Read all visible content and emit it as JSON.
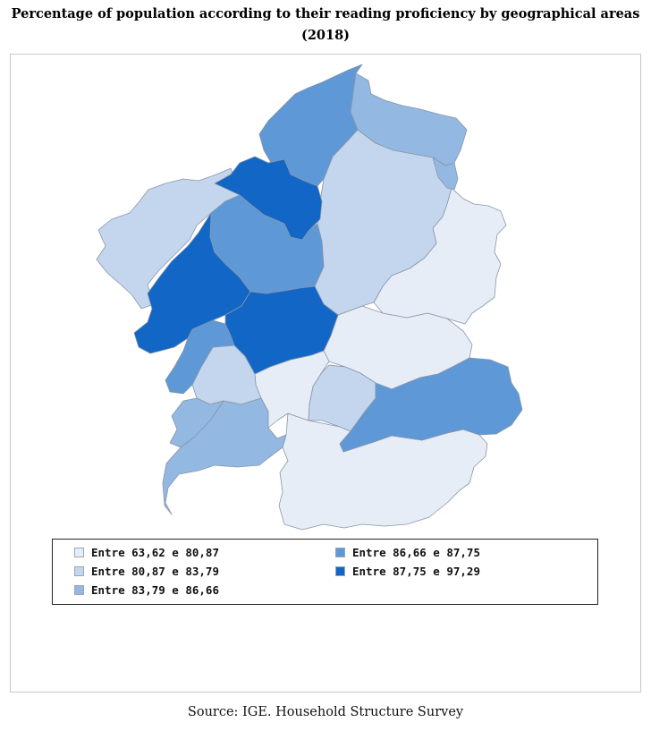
{
  "title": {
    "line1": "Percentage of population according to their reading proficiency by geographical areas",
    "line2": "(2018)"
  },
  "legend": {
    "items": [
      {
        "label": "Entre 63,62 e 80,87",
        "color": "#e6edf7"
      },
      {
        "label": "Entre 80,87 e 83,79",
        "color": "#c3d6ee"
      },
      {
        "label": "Entre 83,79 e 86,66",
        "color": "#93b8e2"
      },
      {
        "label": "Entre 86,66 e 87,75",
        "color": "#5f98d6"
      },
      {
        "label": "Entre 87,75 e 97,29",
        "color": "#1166c6"
      }
    ]
  },
  "map": {
    "regions": [
      {
        "class": 0
      },
      {
        "class": 0
      },
      {
        "class": 0
      },
      {
        "class": 0
      },
      {
        "class": 1
      },
      {
        "class": 1
      },
      {
        "class": 1
      },
      {
        "class": 1
      },
      {
        "class": 2
      },
      {
        "class": 2
      },
      {
        "class": 2
      },
      {
        "class": 2
      },
      {
        "class": 3
      },
      {
        "class": 3
      },
      {
        "class": 3
      },
      {
        "class": 3
      },
      {
        "class": 4
      },
      {
        "class": 4
      },
      {
        "class": 4
      }
    ]
  },
  "source": "Source: IGE. Household Structure Survey"
}
